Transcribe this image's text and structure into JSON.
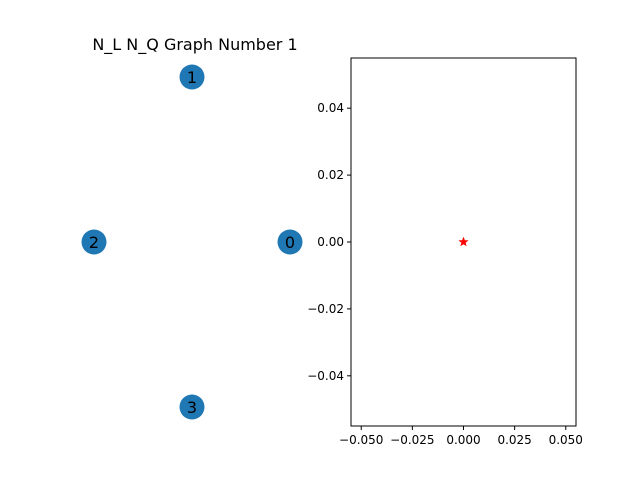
{
  "figure": {
    "background": "#ffffff"
  },
  "chart_data": [
    {
      "type": "network",
      "title": "N_L  N_Q Graph Number 1",
      "node_color": "#1f77b4",
      "nodes": [
        {
          "id": "0",
          "label": "0",
          "x": 1.0,
          "y": 0.0
        },
        {
          "id": "1",
          "label": "1",
          "x": 0.0,
          "y": 1.0
        },
        {
          "id": "2",
          "label": "2",
          "x": -1.0,
          "y": 0.0
        },
        {
          "id": "3",
          "label": "3",
          "x": 0.0,
          "y": -1.0
        }
      ],
      "edges": []
    },
    {
      "type": "scatter",
      "title": "",
      "xlabel": "",
      "ylabel": "",
      "xlim": [
        -0.055,
        0.055
      ],
      "ylim": [
        -0.055,
        0.055
      ],
      "xticks": [
        -0.05,
        -0.025,
        0.0,
        0.025,
        0.05
      ],
      "xtick_labels": [
        "−0.050",
        "−0.025",
        "0.000",
        "0.025",
        "0.050"
      ],
      "yticks": [
        -0.04,
        -0.02,
        0.0,
        0.02,
        0.04
      ],
      "ytick_labels": [
        "−0.04",
        "−0.02",
        "0.00",
        "0.02",
        "0.04"
      ],
      "grid": false,
      "series": [
        {
          "marker": "star",
          "color": "#ff0000",
          "points": [
            {
              "x": 0.0,
              "y": 0.0
            }
          ]
        }
      ]
    }
  ]
}
